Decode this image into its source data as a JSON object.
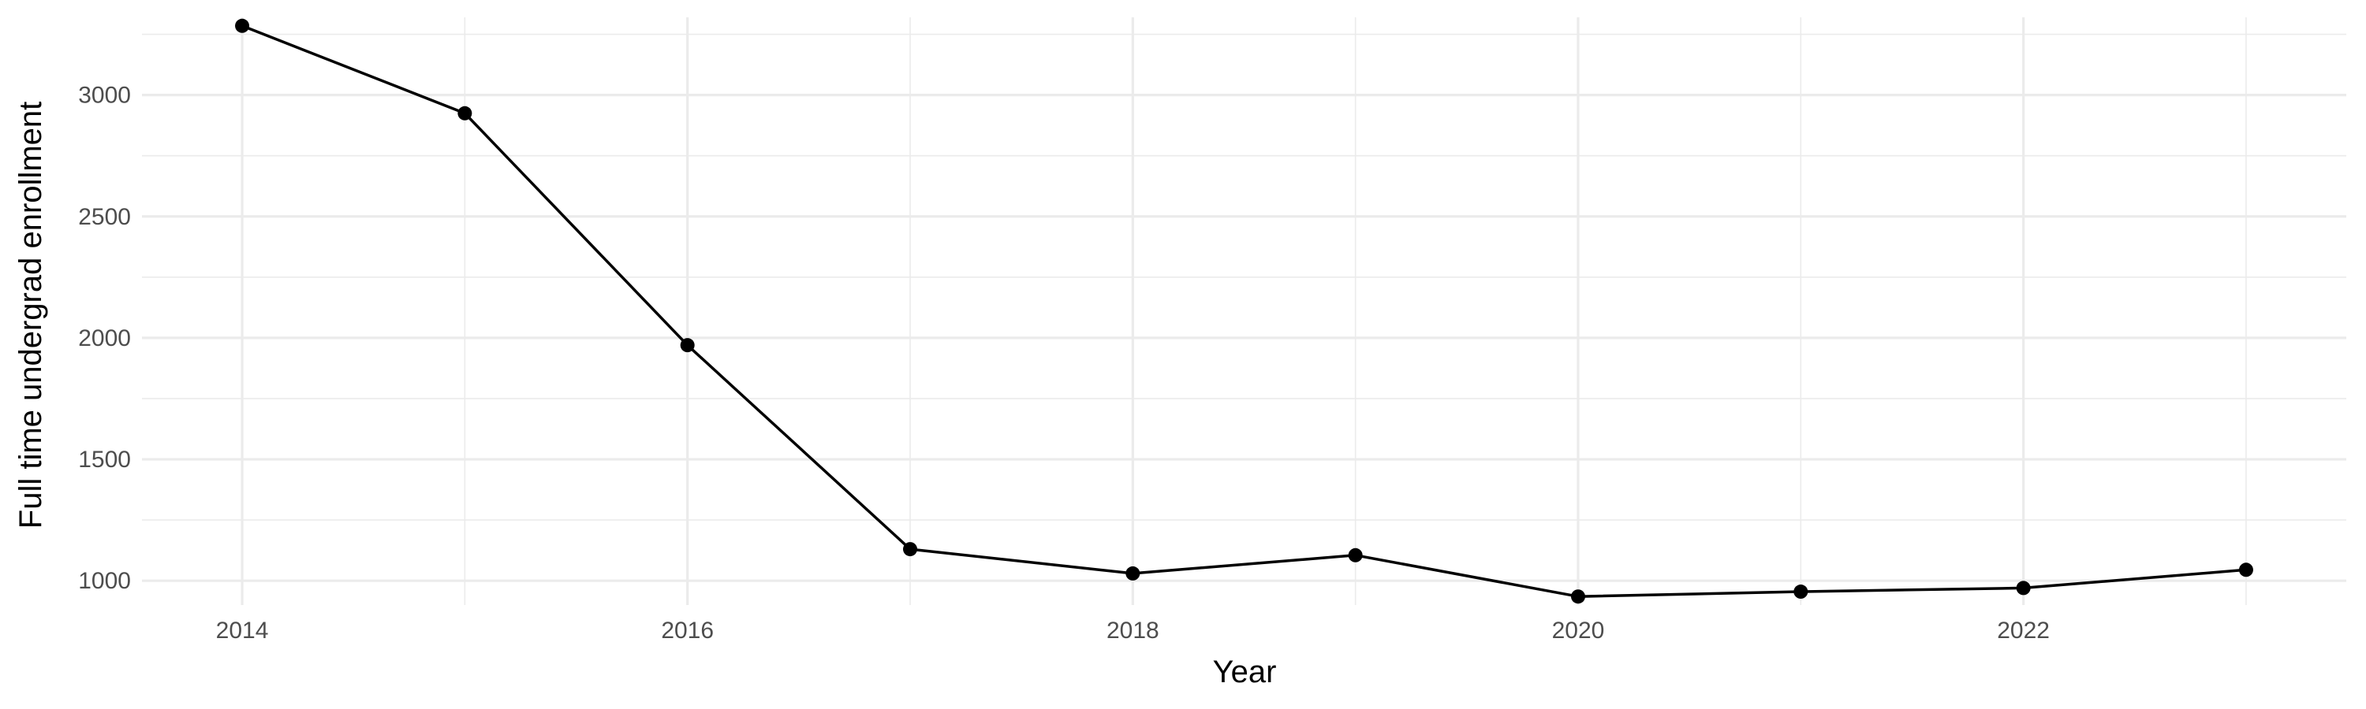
{
  "chart_data": {
    "type": "line",
    "xlabel": "Year",
    "ylabel": "Full time undergrad enrollment",
    "xlim": [
      2013.55,
      2023.45
    ],
    "ylim": [
      900,
      3320
    ],
    "x_ticks": [
      2014,
      2016,
      2018,
      2020,
      2022
    ],
    "x_minor_ticks": [
      2015,
      2017,
      2019,
      2021,
      2023
    ],
    "y_ticks": [
      1000,
      1500,
      2000,
      2500,
      3000
    ],
    "y_minor_ticks": [
      1250,
      1750,
      2250,
      2750,
      3250
    ],
    "grid": true,
    "legend": "none",
    "series": [
      {
        "x": [
          2014,
          2015,
          2016,
          2017,
          2018,
          2019,
          2020,
          2021,
          2022,
          2023
        ],
        "values": [
          3285,
          2925,
          1970,
          1130,
          1030,
          1105,
          935,
          955,
          970,
          1045
        ],
        "color": "#000000"
      }
    ]
  }
}
